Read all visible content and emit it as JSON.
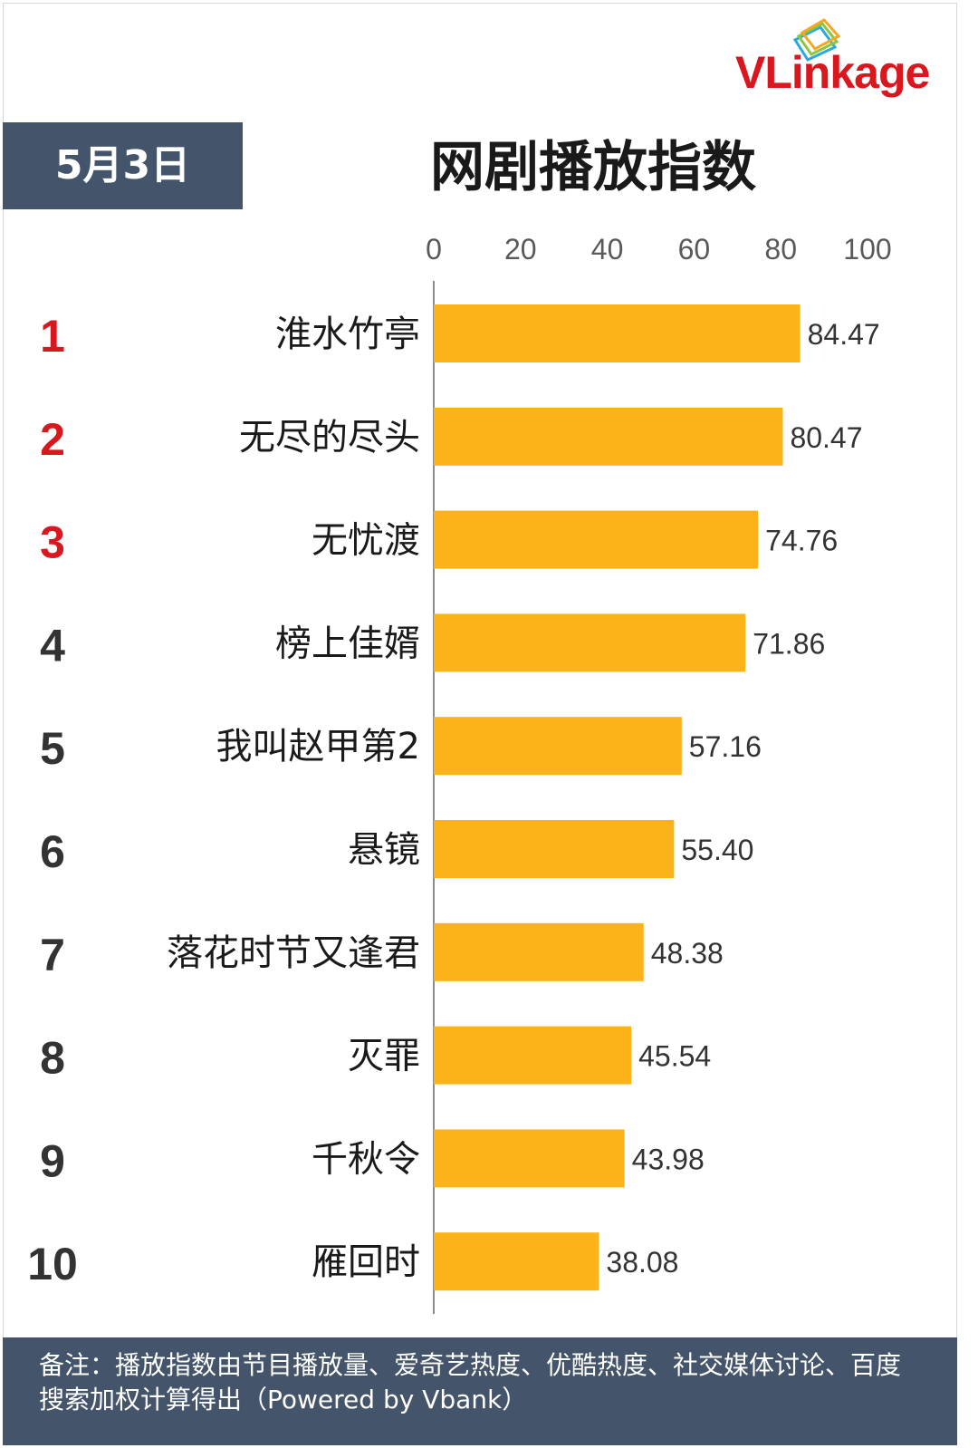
{
  "brand": {
    "logo_text": "VLinkage",
    "logo_icon": "layered-cards-logo-icon"
  },
  "header": {
    "date": "5月3日",
    "title": "网剧播放指数"
  },
  "colors": {
    "bar": "#fbb319",
    "rank_top": "#d8171e",
    "rank_other": "#333333",
    "banner": "#44546a"
  },
  "footer": {
    "note": "备注：播放指数由节目播放量、爱奇艺热度、优酷热度、社交媒体讨论、百度搜索加权计算得出（Powered by Vbank）"
  },
  "chart_data": {
    "type": "bar",
    "orientation": "horizontal",
    "categories": [
      "淮水竹亭",
      "无尽的尽头",
      "无忧渡",
      "榜上佳婿",
      "我叫赵甲第2",
      "悬镜",
      "落花时节又逢君",
      "灭罪",
      "千秋令",
      "雁回时"
    ],
    "ranks": [
      "1",
      "2",
      "3",
      "4",
      "5",
      "6",
      "7",
      "8",
      "9",
      "10"
    ],
    "values": [
      84.47,
      80.47,
      74.76,
      71.86,
      57.16,
      55.4,
      48.38,
      45.54,
      43.98,
      38.08
    ],
    "value_labels": [
      "84.47",
      "80.47",
      "74.76",
      "71.86",
      "57.16",
      "55.40",
      "48.38",
      "45.54",
      "43.98",
      "38.08"
    ],
    "x_ticks": [
      "0",
      "20",
      "40",
      "60",
      "80",
      "100"
    ],
    "xlim": [
      0,
      100
    ],
    "title": "网剧播放指数",
    "xlabel": "",
    "ylabel": "",
    "grid": false,
    "axis_position": "top"
  }
}
